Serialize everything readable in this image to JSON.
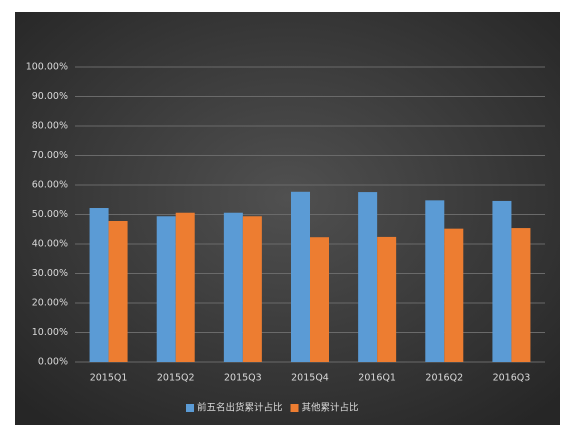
{
  "chart_data": {
    "type": "bar",
    "categories": [
      "2015Q1",
      "2015Q2",
      "2015Q3",
      "2015Q4",
      "2016Q1",
      "2016Q2",
      "2016Q3"
    ],
    "series": [
      {
        "name": "前五名出货累计占比",
        "color": "#5b9bd5",
        "values": [
          52.2,
          49.4,
          50.6,
          57.7,
          57.6,
          54.8,
          54.6
        ]
      },
      {
        "name": "其他累计占比",
        "color": "#ed7d31",
        "values": [
          47.8,
          50.6,
          49.4,
          42.3,
          42.4,
          45.2,
          45.4
        ]
      }
    ],
    "ylim": [
      0,
      100
    ],
    "yticks": [
      {
        "value": 0,
        "label": "0.00%"
      },
      {
        "value": 10,
        "label": "10.00%"
      },
      {
        "value": 20,
        "label": "20.00%"
      },
      {
        "value": 30,
        "label": "30.00%"
      },
      {
        "value": 40,
        "label": "40.00%"
      },
      {
        "value": 50,
        "label": "50.00%"
      },
      {
        "value": 60,
        "label": "60.00%"
      },
      {
        "value": 70,
        "label": "70.00%"
      },
      {
        "value": 80,
        "label": "80.00%"
      },
      {
        "value": 90,
        "label": "90.00%"
      },
      {
        "value": 100,
        "label": "100.00%"
      }
    ],
    "grid": true,
    "legend": "bottom"
  }
}
